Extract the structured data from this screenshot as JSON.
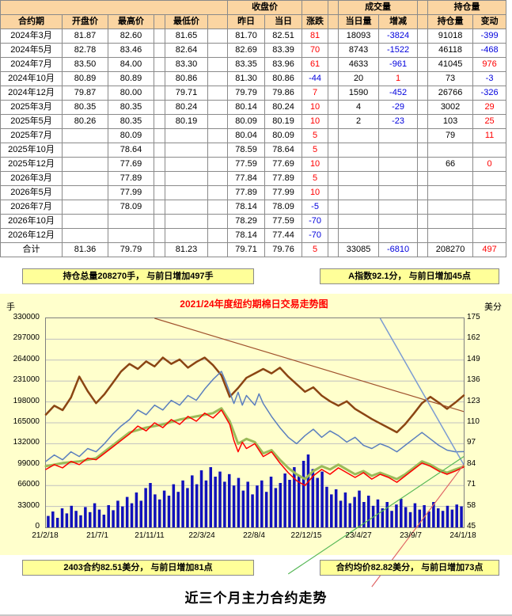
{
  "colors": {
    "positive": "#ff0000",
    "negative": "#0000dd",
    "header_bg": "#fbd5a2",
    "summary_bar_bg": "#ffff99",
    "plot_bg": "#ffffcc",
    "volume_bar": "#1111bb",
    "oi_line": "#8b4513",
    "index_line": "#5b7fbe",
    "main_line": "#ff0000",
    "avg_line": "#9bbb59",
    "title_red": "#ff0000"
  },
  "table": {
    "groups": {
      "close": "收盘价",
      "volume": "成交量",
      "oi": "持仓量"
    },
    "headers": [
      "合约期",
      "开盘价",
      "最高价",
      "最低价",
      "昨日",
      "当日",
      "涨跌",
      "当日量",
      "增减",
      "持仓量",
      "变动"
    ],
    "rows": [
      [
        "2024年3月",
        "81.87",
        "82.60",
        "81.65",
        "81.70",
        "82.51",
        "81",
        "18093",
        "-3824",
        "91018",
        "-399"
      ],
      [
        "2024年5月",
        "82.78",
        "83.46",
        "82.64",
        "82.69",
        "83.39",
        "70",
        "8743",
        "-1522",
        "46118",
        "-468"
      ],
      [
        "2024年7月",
        "83.50",
        "84.00",
        "83.30",
        "83.35",
        "83.96",
        "61",
        "4633",
        "-961",
        "41045",
        "976"
      ],
      [
        "2024年10月",
        "80.89",
        "80.89",
        "80.86",
        "81.30",
        "80.86",
        "-44",
        "20",
        "1",
        "73",
        "-3"
      ],
      [
        "2024年12月",
        "79.87",
        "80.00",
        "79.71",
        "79.79",
        "79.86",
        "7",
        "1590",
        "-452",
        "26766",
        "-326"
      ],
      [
        "2025年3月",
        "80.35",
        "80.35",
        "80.24",
        "80.14",
        "80.24",
        "10",
        "4",
        "-29",
        "3002",
        "29"
      ],
      [
        "2025年5月",
        "80.26",
        "80.35",
        "80.19",
        "80.09",
        "80.19",
        "10",
        "2",
        "-23",
        "103",
        "25"
      ],
      [
        "2025年7月",
        "",
        "80.09",
        "",
        "80.04",
        "80.09",
        "5",
        "",
        "",
        "79",
        "11"
      ],
      [
        "2025年10月",
        "",
        "78.64",
        "",
        "78.59",
        "78.64",
        "5",
        "",
        "",
        "",
        ""
      ],
      [
        "2025年12月",
        "",
        "77.69",
        "",
        "77.59",
        "77.69",
        "10",
        "",
        "",
        "66",
        "0"
      ],
      [
        "2026年3月",
        "",
        "77.89",
        "",
        "77.84",
        "77.89",
        "5",
        "",
        "",
        "",
        ""
      ],
      [
        "2026年5月",
        "",
        "77.99",
        "",
        "77.89",
        "77.99",
        "10",
        "",
        "",
        "",
        ""
      ],
      [
        "2026年7月",
        "",
        "78.09",
        "",
        "78.14",
        "78.09",
        "-5",
        "",
        "",
        "",
        ""
      ],
      [
        "2026年10月",
        "",
        "",
        "",
        "78.29",
        "77.59",
        "-70",
        "",
        "",
        "",
        ""
      ],
      [
        "2026年12月",
        "",
        "",
        "",
        "78.14",
        "77.44",
        "-70",
        "",
        "",
        "",
        ""
      ]
    ],
    "total": [
      "合计",
      "81.36",
      "79.79",
      "81.23",
      "79.71",
      "79.76",
      "5",
      "33085",
      "-6810",
      "208270",
      "497"
    ]
  },
  "info_bars": {
    "top_left": "持仓总量208270手， 与前日增加497手",
    "top_right": "A指数92.1分， 与前日增加45点",
    "bottom_left": "2403合约82.51美分， 与前日增加81点",
    "bottom_right": "合约均价82.82美分， 与前日增加73点"
  },
  "footer": {
    "title": "近三个月主力合约走势"
  },
  "chart_data": {
    "type": "line",
    "title": "2021/24年度纽约期棉日交易走势图",
    "grid": true,
    "legend": "none",
    "left_axis": {
      "label": "手",
      "min": 0,
      "max": 330000,
      "ticks": [
        330000,
        297000,
        264000,
        231000,
        198000,
        165000,
        132000,
        99000,
        66000,
        33000,
        0
      ]
    },
    "right_axis": {
      "label": "美分",
      "min": 45,
      "max": 175,
      "ticks": [
        175,
        162,
        149,
        136,
        123,
        110,
        97,
        84,
        71,
        58,
        45
      ]
    },
    "x_labels": [
      "21/2/18",
      "21/7/1",
      "21/11/11",
      "22/3/24",
      "22/8/4",
      "22/12/15",
      "23/4/27",
      "23/9/7",
      "24/1/18"
    ],
    "bars": {
      "name": "volume-bars",
      "axis": "left",
      "color": "#1111bb",
      "values": [
        18000,
        25000,
        15000,
        30000,
        22000,
        34000,
        26000,
        19000,
        32000,
        24000,
        38000,
        28000,
        20000,
        35000,
        27000,
        42000,
        33000,
        48000,
        38000,
        55000,
        42000,
        62000,
        70000,
        52000,
        44000,
        58000,
        50000,
        68000,
        56000,
        74000,
        62000,
        82000,
        68000,
        90000,
        74000,
        95000,
        80000,
        88000,
        72000,
        84000,
        66000,
        78000,
        58000,
        72000,
        52000,
        66000,
        74000,
        56000,
        80000,
        62000,
        70000,
        85000,
        75000,
        95000,
        82000,
        105000,
        115000,
        92000,
        78000,
        88000,
        64000,
        52000,
        60000,
        42000,
        55000,
        38000,
        48000,
        58000,
        40000,
        50000,
        34000,
        44000,
        30000,
        40000,
        26000,
        36000,
        45000,
        32000,
        24000,
        38000,
        28000,
        35000,
        25000,
        40000,
        30000,
        26000,
        34000,
        28000,
        36000,
        33085
      ]
    },
    "series": [
      {
        "name": "brown-line",
        "axis": "left",
        "color": "#8b4513",
        "width": 2.5,
        "points": [
          [
            0,
            178000
          ],
          [
            2,
            192000
          ],
          [
            4,
            185000
          ],
          [
            6,
            205000
          ],
          [
            8,
            238000
          ],
          [
            10,
            215000
          ],
          [
            12,
            196000
          ],
          [
            14,
            210000
          ],
          [
            16,
            228000
          ],
          [
            18,
            246000
          ],
          [
            20,
            258000
          ],
          [
            22,
            250000
          ],
          [
            24,
            262000
          ],
          [
            26,
            254000
          ],
          [
            28,
            268000
          ],
          [
            30,
            258000
          ],
          [
            32,
            265000
          ],
          [
            34,
            252000
          ],
          [
            36,
            261000
          ],
          [
            38,
            268000
          ],
          [
            40,
            256000
          ],
          [
            42,
            240000
          ],
          [
            44,
            206000
          ],
          [
            46,
            220000
          ],
          [
            48,
            236000
          ],
          [
            50,
            243000
          ],
          [
            52,
            250000
          ],
          [
            54,
            243000
          ],
          [
            56,
            252000
          ],
          [
            58,
            238000
          ],
          [
            60,
            226000
          ],
          [
            62,
            214000
          ],
          [
            64,
            221000
          ],
          [
            66,
            208000
          ],
          [
            68,
            199000
          ],
          [
            70,
            192000
          ],
          [
            72,
            199000
          ],
          [
            74,
            187000
          ],
          [
            76,
            179000
          ],
          [
            78,
            171000
          ],
          [
            80,
            164000
          ],
          [
            82,
            157000
          ],
          [
            84,
            150000
          ],
          [
            86,
            163000
          ],
          [
            88,
            179000
          ],
          [
            90,
            196000
          ],
          [
            92,
            206000
          ],
          [
            94,
            197000
          ],
          [
            96,
            187000
          ],
          [
            98,
            197000
          ],
          [
            100,
            208270
          ]
        ]
      },
      {
        "name": "blue-line",
        "axis": "right",
        "color": "#5b7fbe",
        "width": 1.5,
        "points": [
          [
            0,
            86
          ],
          [
            2,
            90
          ],
          [
            4,
            87
          ],
          [
            6,
            92
          ],
          [
            8,
            89
          ],
          [
            10,
            94
          ],
          [
            12,
            92
          ],
          [
            14,
            97
          ],
          [
            16,
            103
          ],
          [
            18,
            108
          ],
          [
            20,
            112
          ],
          [
            22,
            118
          ],
          [
            24,
            115
          ],
          [
            26,
            121
          ],
          [
            28,
            118
          ],
          [
            30,
            124
          ],
          [
            32,
            121
          ],
          [
            34,
            127
          ],
          [
            36,
            124
          ],
          [
            38,
            131
          ],
          [
            40,
            137
          ],
          [
            42,
            142
          ],
          [
            43,
            136
          ],
          [
            44,
            129
          ],
          [
            45,
            122
          ],
          [
            46,
            129
          ],
          [
            47,
            121
          ],
          [
            48,
            127
          ],
          [
            50,
            121
          ],
          [
            51,
            128
          ],
          [
            52,
            122
          ],
          [
            54,
            114
          ],
          [
            56,
            107
          ],
          [
            58,
            101
          ],
          [
            60,
            97
          ],
          [
            62,
            102
          ],
          [
            64,
            106
          ],
          [
            66,
            101
          ],
          [
            68,
            105
          ],
          [
            70,
            102
          ],
          [
            72,
            98
          ],
          [
            74,
            101
          ],
          [
            76,
            96
          ],
          [
            78,
            94
          ],
          [
            80,
            97
          ],
          [
            82,
            95
          ],
          [
            84,
            92
          ],
          [
            86,
            96
          ],
          [
            88,
            100
          ],
          [
            90,
            104
          ],
          [
            92,
            100
          ],
          [
            94,
            96
          ],
          [
            96,
            93
          ],
          [
            98,
            92
          ],
          [
            100,
            92.1
          ]
        ]
      },
      {
        "name": "green-line",
        "axis": "right",
        "color": "#9bbb59",
        "width": 3,
        "points": [
          [
            0,
            83
          ],
          [
            4,
            85
          ],
          [
            8,
            86
          ],
          [
            12,
            88
          ],
          [
            16,
            96
          ],
          [
            20,
            104
          ],
          [
            24,
            107
          ],
          [
            28,
            109
          ],
          [
            32,
            112
          ],
          [
            36,
            114
          ],
          [
            40,
            116
          ],
          [
            42,
            119
          ],
          [
            44,
            111
          ],
          [
            46,
            97
          ],
          [
            48,
            100
          ],
          [
            50,
            98
          ],
          [
            52,
            91
          ],
          [
            54,
            93
          ],
          [
            56,
            87
          ],
          [
            58,
            82
          ],
          [
            60,
            78
          ],
          [
            62,
            75
          ],
          [
            64,
            80
          ],
          [
            66,
            83
          ],
          [
            68,
            81
          ],
          [
            70,
            84
          ],
          [
            72,
            81
          ],
          [
            74,
            78
          ],
          [
            76,
            80
          ],
          [
            78,
            77
          ],
          [
            80,
            79
          ],
          [
            82,
            77
          ],
          [
            84,
            75
          ],
          [
            86,
            78
          ],
          [
            88,
            82
          ],
          [
            90,
            86
          ],
          [
            92,
            84
          ],
          [
            94,
            81
          ],
          [
            96,
            79
          ],
          [
            98,
            81
          ],
          [
            100,
            82.82
          ]
        ]
      },
      {
        "name": "red-line",
        "axis": "right",
        "color": "#ff0000",
        "width": 1.5,
        "points": [
          [
            0,
            81
          ],
          [
            2,
            84
          ],
          [
            4,
            82
          ],
          [
            6,
            86
          ],
          [
            8,
            84
          ],
          [
            10,
            88
          ],
          [
            12,
            87
          ],
          [
            14,
            91
          ],
          [
            16,
            95
          ],
          [
            18,
            99
          ],
          [
            20,
            103
          ],
          [
            22,
            108
          ],
          [
            24,
            105
          ],
          [
            26,
            110
          ],
          [
            28,
            107
          ],
          [
            30,
            112
          ],
          [
            32,
            109
          ],
          [
            34,
            114
          ],
          [
            36,
            111
          ],
          [
            38,
            116
          ],
          [
            40,
            113
          ],
          [
            42,
            118
          ],
          [
            44,
            109
          ],
          [
            45,
            99
          ],
          [
            46,
            92
          ],
          [
            47,
            98
          ],
          [
            48,
            94
          ],
          [
            50,
            97
          ],
          [
            52,
            89
          ],
          [
            54,
            92
          ],
          [
            56,
            85
          ],
          [
            58,
            79
          ],
          [
            60,
            74
          ],
          [
            62,
            71
          ],
          [
            64,
            77
          ],
          [
            66,
            81
          ],
          [
            68,
            78
          ],
          [
            70,
            82
          ],
          [
            72,
            79
          ],
          [
            74,
            76
          ],
          [
            76,
            79
          ],
          [
            78,
            75
          ],
          [
            80,
            78
          ],
          [
            82,
            76
          ],
          [
            84,
            73
          ],
          [
            86,
            77
          ],
          [
            88,
            81
          ],
          [
            90,
            85
          ],
          [
            92,
            83
          ],
          [
            94,
            80
          ],
          [
            96,
            78
          ],
          [
            98,
            80
          ],
          [
            100,
            82.51
          ]
        ]
      }
    ],
    "trendlines": [
      {
        "name": "darkred-trend",
        "color": "#a0522d",
        "width": 1.2,
        "from": [
          26,
          175
        ],
        "to": [
          100,
          117
        ]
      },
      {
        "name": "blue-trend",
        "color": "#7b9bd2",
        "width": 1.5,
        "from": [
          80,
          175
        ],
        "to": [
          100,
          84
        ]
      },
      {
        "name": "green-trend",
        "color": "#58b858",
        "width": 1.2,
        "from": [
          58,
          16
        ],
        "to": [
          100,
          89
        ]
      },
      {
        "name": "red-trend",
        "color": "#e06666",
        "width": 1.2,
        "from": [
          78,
          8
        ],
        "to": [
          100,
          84
        ]
      }
    ]
  }
}
